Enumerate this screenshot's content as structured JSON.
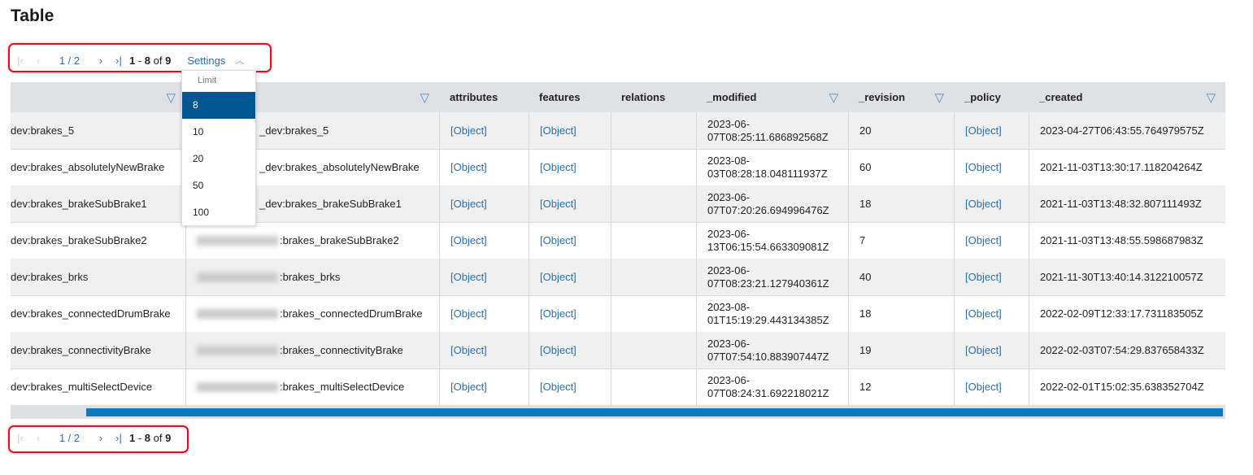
{
  "title": "Table",
  "pager": {
    "page": "1 / 2",
    "range_start": "1",
    "range_end": "8",
    "of": "of",
    "total": "9",
    "settings": "Settings"
  },
  "limit": {
    "label": "Limit",
    "options": [
      "8",
      "10",
      "20",
      "50",
      "100"
    ],
    "selected": "8"
  },
  "columns": [
    "",
    "",
    "attributes",
    "features",
    "relations",
    "_modified",
    "_revision",
    "_policy",
    "_created"
  ],
  "rows": [
    {
      "c1": "dev:brakes_5",
      "c2": "_dev:brakes_5",
      "attributes": "[Object]",
      "features": "[Object]",
      "relations": "",
      "modified": "2023-06-07T08:25:11.686892568Z",
      "revision": "20",
      "policy": "[Object]",
      "created": "2023-04-27T06:43:55.764979575Z"
    },
    {
      "c1": "dev:brakes_absolutelyNewBrake",
      "c2": "_dev:brakes_absolutelyNewBrake",
      "attributes": "[Object]",
      "features": "[Object]",
      "relations": "",
      "modified": "2023-08-03T08:28:18.048111937Z",
      "revision": "60",
      "policy": "[Object]",
      "created": "2021-11-03T13:30:17.118204264Z"
    },
    {
      "c1": "dev:brakes_brakeSubBrake1",
      "c2": "_dev:brakes_brakeSubBrake1",
      "attributes": "[Object]",
      "features": "[Object]",
      "relations": "",
      "modified": "2023-06-07T07:20:26.694996476Z",
      "revision": "18",
      "policy": "[Object]",
      "created": "2021-11-03T13:48:32.807111493Z"
    },
    {
      "c1": "dev:brakes_brakeSubBrake2",
      "c2": ":brakes_brakeSubBrake2",
      "attributes": "[Object]",
      "features": "[Object]",
      "relations": "",
      "modified": "2023-06-13T06:15:54.663309081Z",
      "revision": "7",
      "policy": "[Object]",
      "created": "2021-11-03T13:48:55.598687983Z"
    },
    {
      "c1": "dev:brakes_brks",
      "c2": ":brakes_brks",
      "attributes": "[Object]",
      "features": "[Object]",
      "relations": "",
      "modified": "2023-06-07T08:23:21.127940361Z",
      "revision": "40",
      "policy": "[Object]",
      "created": "2021-11-30T13:40:14.312210057Z"
    },
    {
      "c1": "dev:brakes_connectedDrumBrake",
      "c2": ":brakes_connectedDrumBrake",
      "attributes": "[Object]",
      "features": "[Object]",
      "relations": "",
      "modified": "2023-08-01T15:19:29.443134385Z",
      "revision": "18",
      "policy": "[Object]",
      "created": "2022-02-09T12:33:17.731183505Z"
    },
    {
      "c1": "dev:brakes_connectivityBrake",
      "c2": ":brakes_connectivityBrake",
      "attributes": "[Object]",
      "features": "[Object]",
      "relations": "",
      "modified": "2023-06-07T07:54:10.883907447Z",
      "revision": "19",
      "policy": "[Object]",
      "created": "2022-02-03T07:54:29.837658433Z"
    },
    {
      "c1": "dev:brakes_multiSelectDevice",
      "c2": ":brakes_multiSelectDevice",
      "attributes": "[Object]",
      "features": "[Object]",
      "relations": "",
      "modified": "2023-06-07T08:24:31.692218021Z",
      "revision": "12",
      "policy": "[Object]",
      "created": "2022-02-01T15:02:35.638352704Z"
    }
  ],
  "colors": {
    "accent": "#2a6fa8",
    "selected": "#005691",
    "scrollbar": "#0a7bc0",
    "highlight": "#e01020"
  }
}
